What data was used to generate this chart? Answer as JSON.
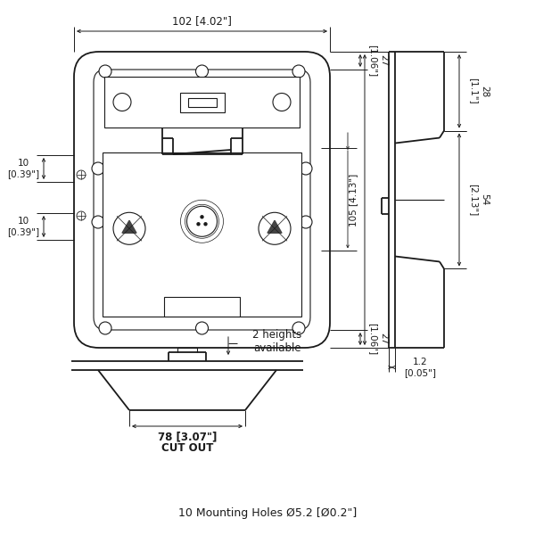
{
  "bg_color": "#ffffff",
  "line_color": "#1a1a1a",
  "text_color": "#1a1a1a",
  "footer": "10 Mounting Holes Ø5.2 [Ø0.2\"]",
  "dim_width": "102 [4.02\"]",
  "dim_top27": "27\n[1.06\"]",
  "dim_bot27": "27\n[1.06\"]",
  "dim_left_top10": "10\n[0.39\"]",
  "dim_left_bot10": "10\n[0.39\"]",
  "dim_side105": "105 [4.13\"]",
  "dim_side28": "28\n[1.1\"]",
  "dim_side54": "54\n[2.13\"]",
  "dim_thick": "1.2\n[0.05\"]",
  "dim_cutout": "78 [3.07\"]",
  "dim_cutout2": "CUT OUT",
  "dim_heights": "2 heights\navailable"
}
